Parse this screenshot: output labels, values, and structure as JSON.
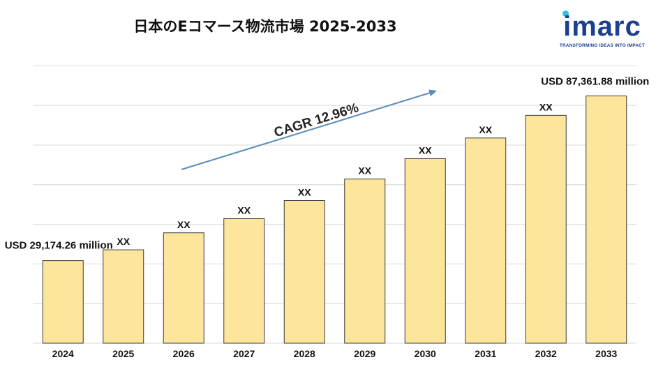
{
  "chart_data": {
    "type": "bar",
    "title": "日本のEコマース物流市場 2025-2033",
    "categories": [
      "2024",
      "2025",
      "2026",
      "2027",
      "2028",
      "2029",
      "2030",
      "2031",
      "2032",
      "2033"
    ],
    "values": [
      29174.26,
      33000,
      39000,
      44000,
      50400,
      58000,
      65200,
      72500,
      80500,
      87361.88
    ],
    "data_labels": [
      "",
      "XX",
      "XX",
      "XX",
      "XX",
      "XX",
      "XX",
      "XX",
      "XX",
      ""
    ],
    "annotations": {
      "start": "USD 29,174.26 million",
      "end": "USD 87,361.88 million",
      "cagr": "CAGR 12.96%"
    },
    "ylim": [
      0,
      104000
    ],
    "grid": true,
    "colors": {
      "bar": "#fde59c",
      "bar_edge": "#3a3a3a",
      "arrow": "#5b8db8"
    }
  },
  "logo": {
    "word": "imarc",
    "tagline": "TRANSFORMING IDEAS INTO IMPACT",
    "color": "#1c3f8f",
    "dot_color": "#2ec4e0"
  }
}
